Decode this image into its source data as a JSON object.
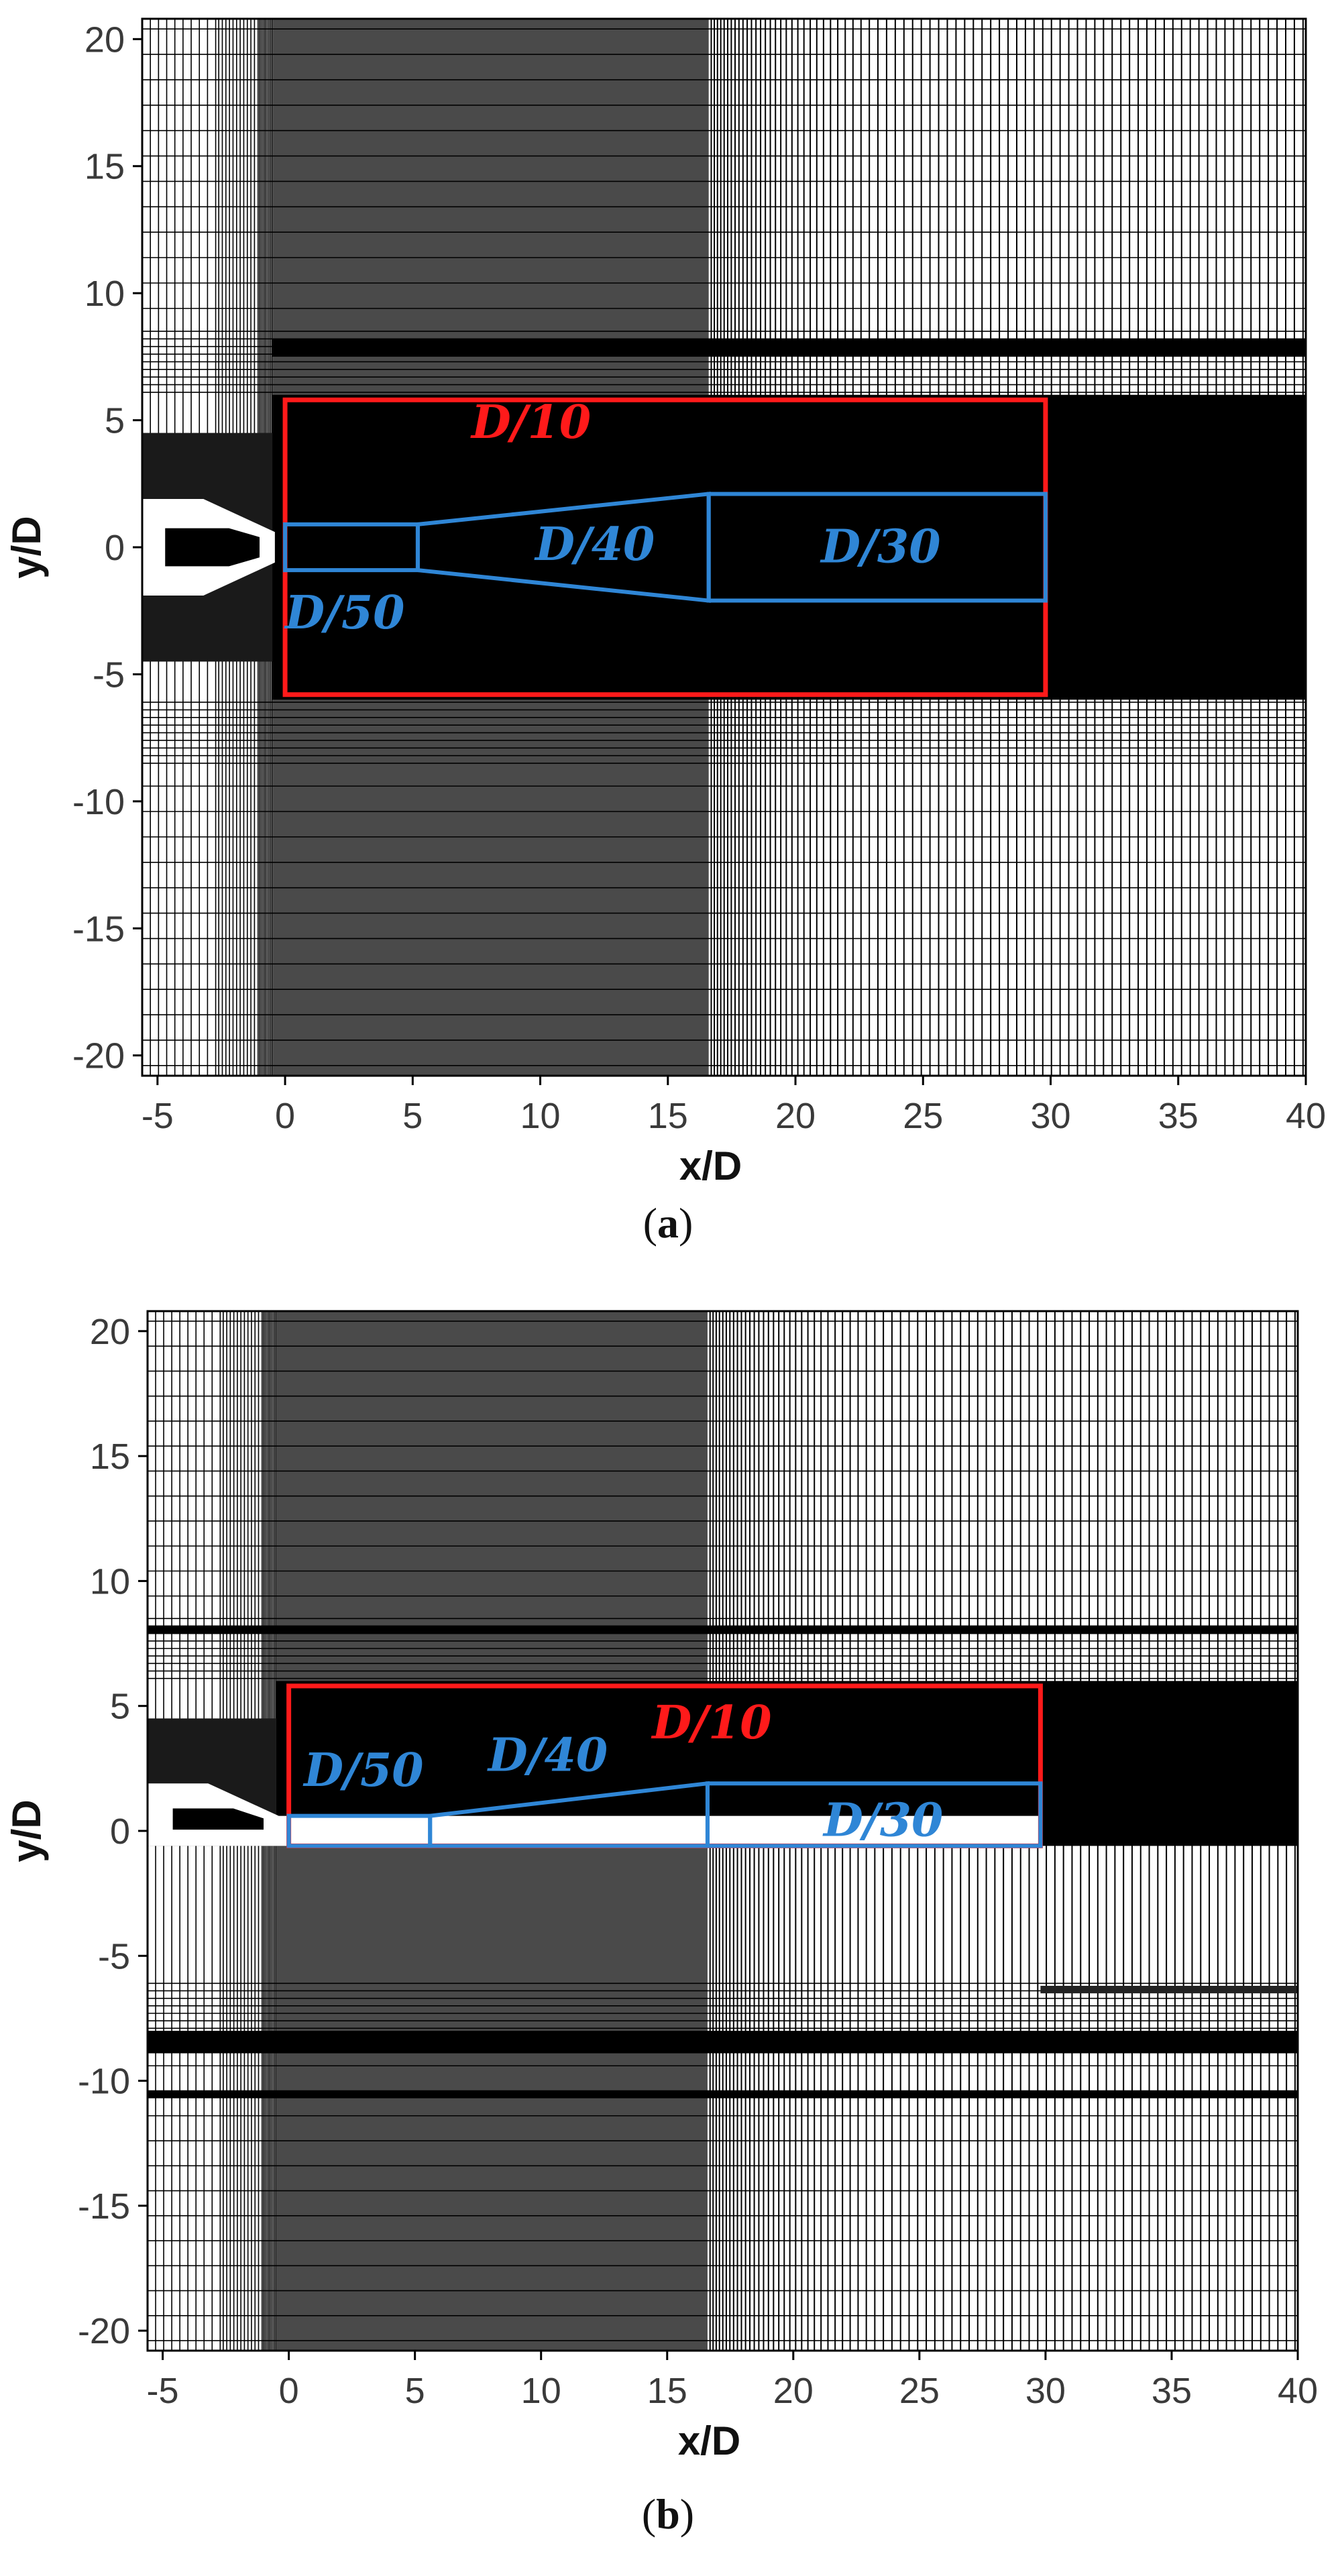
{
  "figure": {
    "colors": {
      "mesh_line": "#000000",
      "fine_region": "#000000",
      "mid_region": "#4a4a4a",
      "refine_box": "#ff1a1a",
      "zone_line": "#2f86d6",
      "nozzle": "#ffffff",
      "tick_text": "#3a3a3a"
    },
    "panels": [
      {
        "caption_open": "(",
        "caption_letter": "a",
        "caption_close": ")",
        "xlabel": "x/D",
        "ylabel": "y/D",
        "xticks": [
          "-5",
          "0",
          "5",
          "10",
          "15",
          "20",
          "25",
          "30",
          "35",
          "40"
        ],
        "yticks": [
          "20",
          "15",
          "10",
          "5",
          "0",
          "-5",
          "-10",
          "-15",
          "-20"
        ],
        "xlim": [
          -5.6,
          40
        ],
        "ylim": [
          -20.8,
          20.8
        ],
        "domain": "full",
        "refinement_box": {
          "label": "D/10",
          "x": [
            0,
            29.8
          ],
          "y": [
            -5.8,
            5.8
          ]
        },
        "zones": [
          {
            "label": "D/50",
            "x": [
              0,
              5.2
            ],
            "y_start": [
              -0.9,
              0.9
            ],
            "y_end": [
              -0.9,
              0.9
            ]
          },
          {
            "label": "D/40",
            "x": [
              5.2,
              16.6
            ],
            "y_start": [
              -0.9,
              0.9
            ],
            "y_end": [
              -2.1,
              2.1
            ]
          },
          {
            "label": "D/30",
            "x": [
              16.6,
              29.8
            ],
            "y_start": [
              -2.1,
              2.1
            ],
            "y_end": [
              -2.1,
              2.1
            ]
          }
        ]
      },
      {
        "caption_open": "(",
        "caption_letter": "b",
        "caption_close": ")",
        "xlabel": "x/D",
        "ylabel": "y/D",
        "xticks": [
          "-5",
          "0",
          "5",
          "10",
          "15",
          "20",
          "25",
          "30",
          "35",
          "40"
        ],
        "yticks": [
          "20",
          "15",
          "10",
          "5",
          "0",
          "-5",
          "-10",
          "-15",
          "-20"
        ],
        "xlim": [
          -5.6,
          40
        ],
        "ylim": [
          -20.8,
          20.8
        ],
        "domain": "half",
        "refinement_box": {
          "label": "D/10",
          "x": [
            0,
            29.8
          ],
          "y": [
            -0.6,
            5.8
          ]
        },
        "zones": [
          {
            "label": "D/50",
            "x": [
              0,
              5.6
            ],
            "y_start": [
              -0.6,
              0.6
            ],
            "y_end": [
              -0.6,
              0.6
            ]
          },
          {
            "label": "D/40",
            "x": [
              5.6,
              16.6
            ],
            "y_start": [
              -0.6,
              0.6
            ],
            "y_end": [
              -0.6,
              1.9
            ]
          },
          {
            "label": "D/30",
            "x": [
              16.6,
              29.8
            ],
            "y_start": [
              -0.6,
              1.9
            ],
            "y_end": [
              -0.6,
              1.9
            ]
          }
        ]
      }
    ]
  }
}
